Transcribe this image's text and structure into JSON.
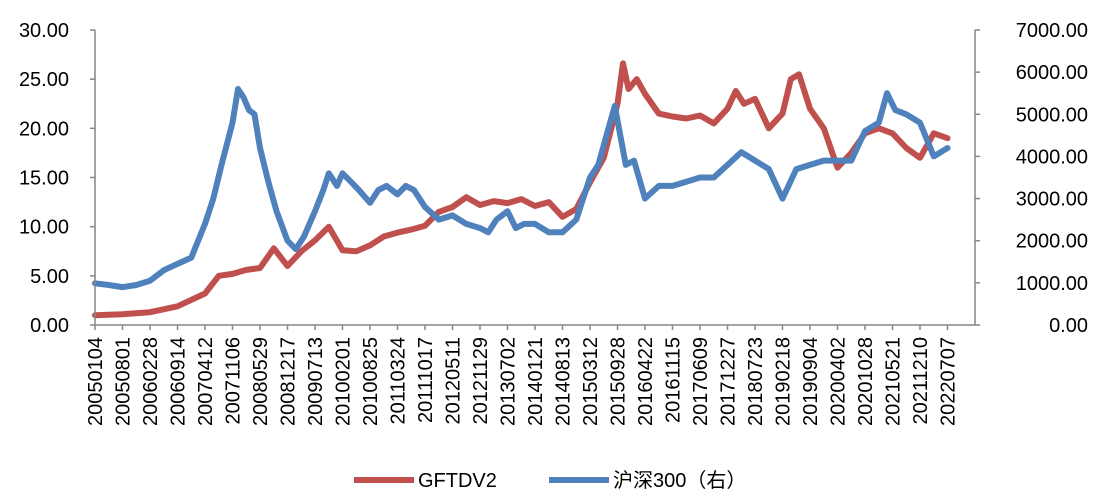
{
  "chart_data": {
    "type": "line",
    "title": "",
    "grid": false,
    "legend_position": "bottom",
    "left_axis": {
      "ylim": [
        0,
        30
      ],
      "tick_labels": [
        "0.00",
        "5.00",
        "10.00",
        "15.00",
        "20.00",
        "25.00",
        "30.00"
      ]
    },
    "right_axis": {
      "ylim": [
        0,
        7000
      ],
      "tick_labels": [
        "0.00",
        "1000.00",
        "2000.00",
        "3000.00",
        "4000.00",
        "5000.00",
        "6000.00",
        "7000.00"
      ]
    },
    "x_tick_labels": [
      "20050104",
      "20050801",
      "20060228",
      "20060914",
      "20070412",
      "20071106",
      "20080529",
      "20081217",
      "20090713",
      "20100201",
      "20100825",
      "20110324",
      "20111017",
      "20120511",
      "20121129",
      "20130702",
      "20140121",
      "20140813",
      "20150312",
      "20150928",
      "20160422",
      "20161115",
      "20170609",
      "20171227",
      "20180723",
      "20190218",
      "20190904",
      "20200402",
      "20201028",
      "20210521",
      "20211210",
      "20220707"
    ],
    "series": [
      {
        "name": "GFTDV2",
        "axis": "left",
        "color": "#C0504D",
        "points": [
          [
            0,
            1.0
          ],
          [
            1,
            1.1
          ],
          [
            2,
            1.3
          ],
          [
            3,
            1.9
          ],
          [
            4,
            3.2
          ],
          [
            4.5,
            5.0
          ],
          [
            5,
            5.2
          ],
          [
            5.5,
            5.6
          ],
          [
            6,
            5.8
          ],
          [
            6.5,
            7.8
          ],
          [
            7,
            6.0
          ],
          [
            7.5,
            7.5
          ],
          [
            8,
            8.6
          ],
          [
            8.5,
            10.0
          ],
          [
            9,
            7.6
          ],
          [
            9.5,
            7.5
          ],
          [
            10,
            8.1
          ],
          [
            10.5,
            9.0
          ],
          [
            11,
            9.4
          ],
          [
            11.5,
            9.7
          ],
          [
            12,
            10.1
          ],
          [
            12.5,
            11.5
          ],
          [
            13,
            12.0
          ],
          [
            13.5,
            13.0
          ],
          [
            14,
            12.2
          ],
          [
            14.5,
            12.6
          ],
          [
            15,
            12.4
          ],
          [
            15.5,
            12.8
          ],
          [
            16,
            12.1
          ],
          [
            16.5,
            12.5
          ],
          [
            17,
            11.0
          ],
          [
            17.5,
            11.8
          ],
          [
            18,
            14.5
          ],
          [
            18.5,
            17.0
          ],
          [
            19,
            22.5
          ],
          [
            19.2,
            26.6
          ],
          [
            19.4,
            24.0
          ],
          [
            19.7,
            25.0
          ],
          [
            20,
            23.5
          ],
          [
            20.5,
            21.5
          ],
          [
            21,
            21.2
          ],
          [
            21.5,
            21.0
          ],
          [
            22,
            21.3
          ],
          [
            22.5,
            20.5
          ],
          [
            23,
            22.0
          ],
          [
            23.3,
            23.8
          ],
          [
            23.6,
            22.5
          ],
          [
            24,
            23.0
          ],
          [
            24.5,
            20.0
          ],
          [
            25,
            21.5
          ],
          [
            25.3,
            25.0
          ],
          [
            25.6,
            25.5
          ],
          [
            26,
            22.0
          ],
          [
            26.5,
            20.0
          ],
          [
            27,
            16.0
          ],
          [
            27.5,
            17.5
          ],
          [
            28,
            19.5
          ],
          [
            28.5,
            20.0
          ],
          [
            29,
            19.5
          ],
          [
            29.5,
            18.0
          ],
          [
            30,
            17.0
          ],
          [
            30.5,
            19.5
          ],
          [
            31,
            19.0
          ]
        ]
      },
      {
        "name": "沪深300（右）",
        "axis": "right",
        "color": "#4F81BD",
        "points": [
          [
            0,
            990
          ],
          [
            0.5,
            950
          ],
          [
            1,
            900
          ],
          [
            1.5,
            950
          ],
          [
            2,
            1050
          ],
          [
            2.5,
            1300
          ],
          [
            3,
            1450
          ],
          [
            3.5,
            1600
          ],
          [
            4,
            2400
          ],
          [
            4.3,
            3000
          ],
          [
            4.6,
            3800
          ],
          [
            5,
            4800
          ],
          [
            5.2,
            5600
          ],
          [
            5.4,
            5400
          ],
          [
            5.6,
            5100
          ],
          [
            5.8,
            5000
          ],
          [
            6,
            4200
          ],
          [
            6.3,
            3400
          ],
          [
            6.6,
            2700
          ],
          [
            7,
            2000
          ],
          [
            7.3,
            1800
          ],
          [
            7.6,
            2100
          ],
          [
            8,
            2700
          ],
          [
            8.3,
            3200
          ],
          [
            8.5,
            3600
          ],
          [
            8.8,
            3300
          ],
          [
            9,
            3600
          ],
          [
            9.3,
            3400
          ],
          [
            9.6,
            3200
          ],
          [
            10,
            2900
          ],
          [
            10.3,
            3200
          ],
          [
            10.6,
            3300
          ],
          [
            11,
            3100
          ],
          [
            11.3,
            3300
          ],
          [
            11.6,
            3200
          ],
          [
            12,
            2800
          ],
          [
            12.5,
            2500
          ],
          [
            13,
            2600
          ],
          [
            13.5,
            2400
          ],
          [
            14,
            2300
          ],
          [
            14.3,
            2200
          ],
          [
            14.6,
            2500
          ],
          [
            15,
            2700
          ],
          [
            15.3,
            2300
          ],
          [
            15.6,
            2400
          ],
          [
            16,
            2400
          ],
          [
            16.5,
            2200
          ],
          [
            17,
            2200
          ],
          [
            17.5,
            2500
          ],
          [
            18,
            3500
          ],
          [
            18.3,
            3800
          ],
          [
            18.6,
            4500
          ],
          [
            18.9,
            5200
          ],
          [
            19.1,
            4500
          ],
          [
            19.3,
            3800
          ],
          [
            19.6,
            3900
          ],
          [
            20,
            3000
          ],
          [
            20.5,
            3300
          ],
          [
            21,
            3300
          ],
          [
            21.5,
            3400
          ],
          [
            22,
            3500
          ],
          [
            22.5,
            3500
          ],
          [
            23,
            3800
          ],
          [
            23.5,
            4100
          ],
          [
            24,
            3900
          ],
          [
            24.5,
            3700
          ],
          [
            25,
            3000
          ],
          [
            25.5,
            3700
          ],
          [
            26,
            3800
          ],
          [
            26.5,
            3900
          ],
          [
            27,
            3900
          ],
          [
            27.5,
            3900
          ],
          [
            28,
            4600
          ],
          [
            28.5,
            4800
          ],
          [
            28.8,
            5500
          ],
          [
            29.1,
            5100
          ],
          [
            29.5,
            5000
          ],
          [
            30,
            4800
          ],
          [
            30.5,
            4000
          ],
          [
            31,
            4200
          ]
        ]
      }
    ]
  }
}
